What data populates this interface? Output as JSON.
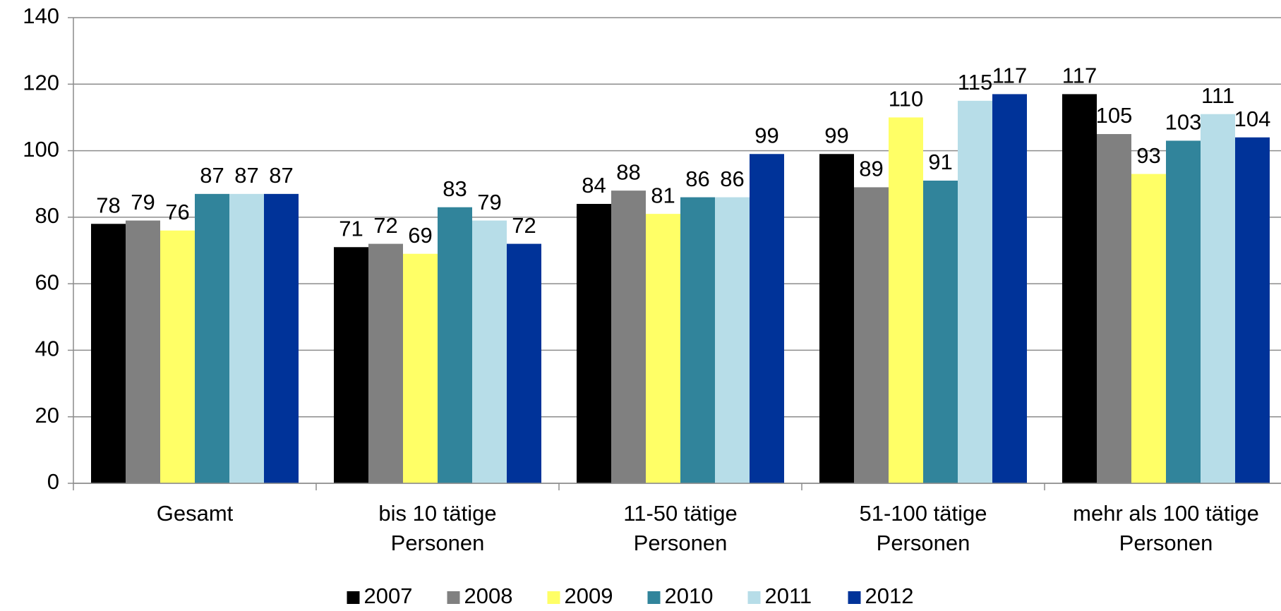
{
  "chart_data": {
    "type": "bar",
    "categories": [
      "Gesamt",
      "bis 10 tätige\nPersonen",
      "11-50 tätige\nPersonen",
      "51-100 tätige\nPersonen",
      "mehr als 100 tätige\nPersonen"
    ],
    "series": [
      {
        "name": "2007",
        "color": "#000000",
        "values": [
          78,
          71,
          84,
          99,
          117
        ]
      },
      {
        "name": "2008",
        "color": "#808080",
        "values": [
          79,
          72,
          88,
          89,
          105
        ]
      },
      {
        "name": "2009",
        "color": "#ffff66",
        "values": [
          76,
          69,
          81,
          110,
          93
        ]
      },
      {
        "name": "2010",
        "color": "#31849b",
        "values": [
          87,
          83,
          86,
          91,
          103
        ]
      },
      {
        "name": "2011",
        "color": "#b7dde8",
        "values": [
          87,
          79,
          86,
          115,
          111
        ]
      },
      {
        "name": "2012",
        "color": "#003399",
        "values": [
          87,
          72,
          99,
          117,
          104
        ]
      }
    ],
    "ylim": [
      0,
      140
    ],
    "yticks": [
      0,
      20,
      40,
      60,
      80,
      100,
      120,
      140
    ],
    "grid": true,
    "legend": "bottom"
  }
}
